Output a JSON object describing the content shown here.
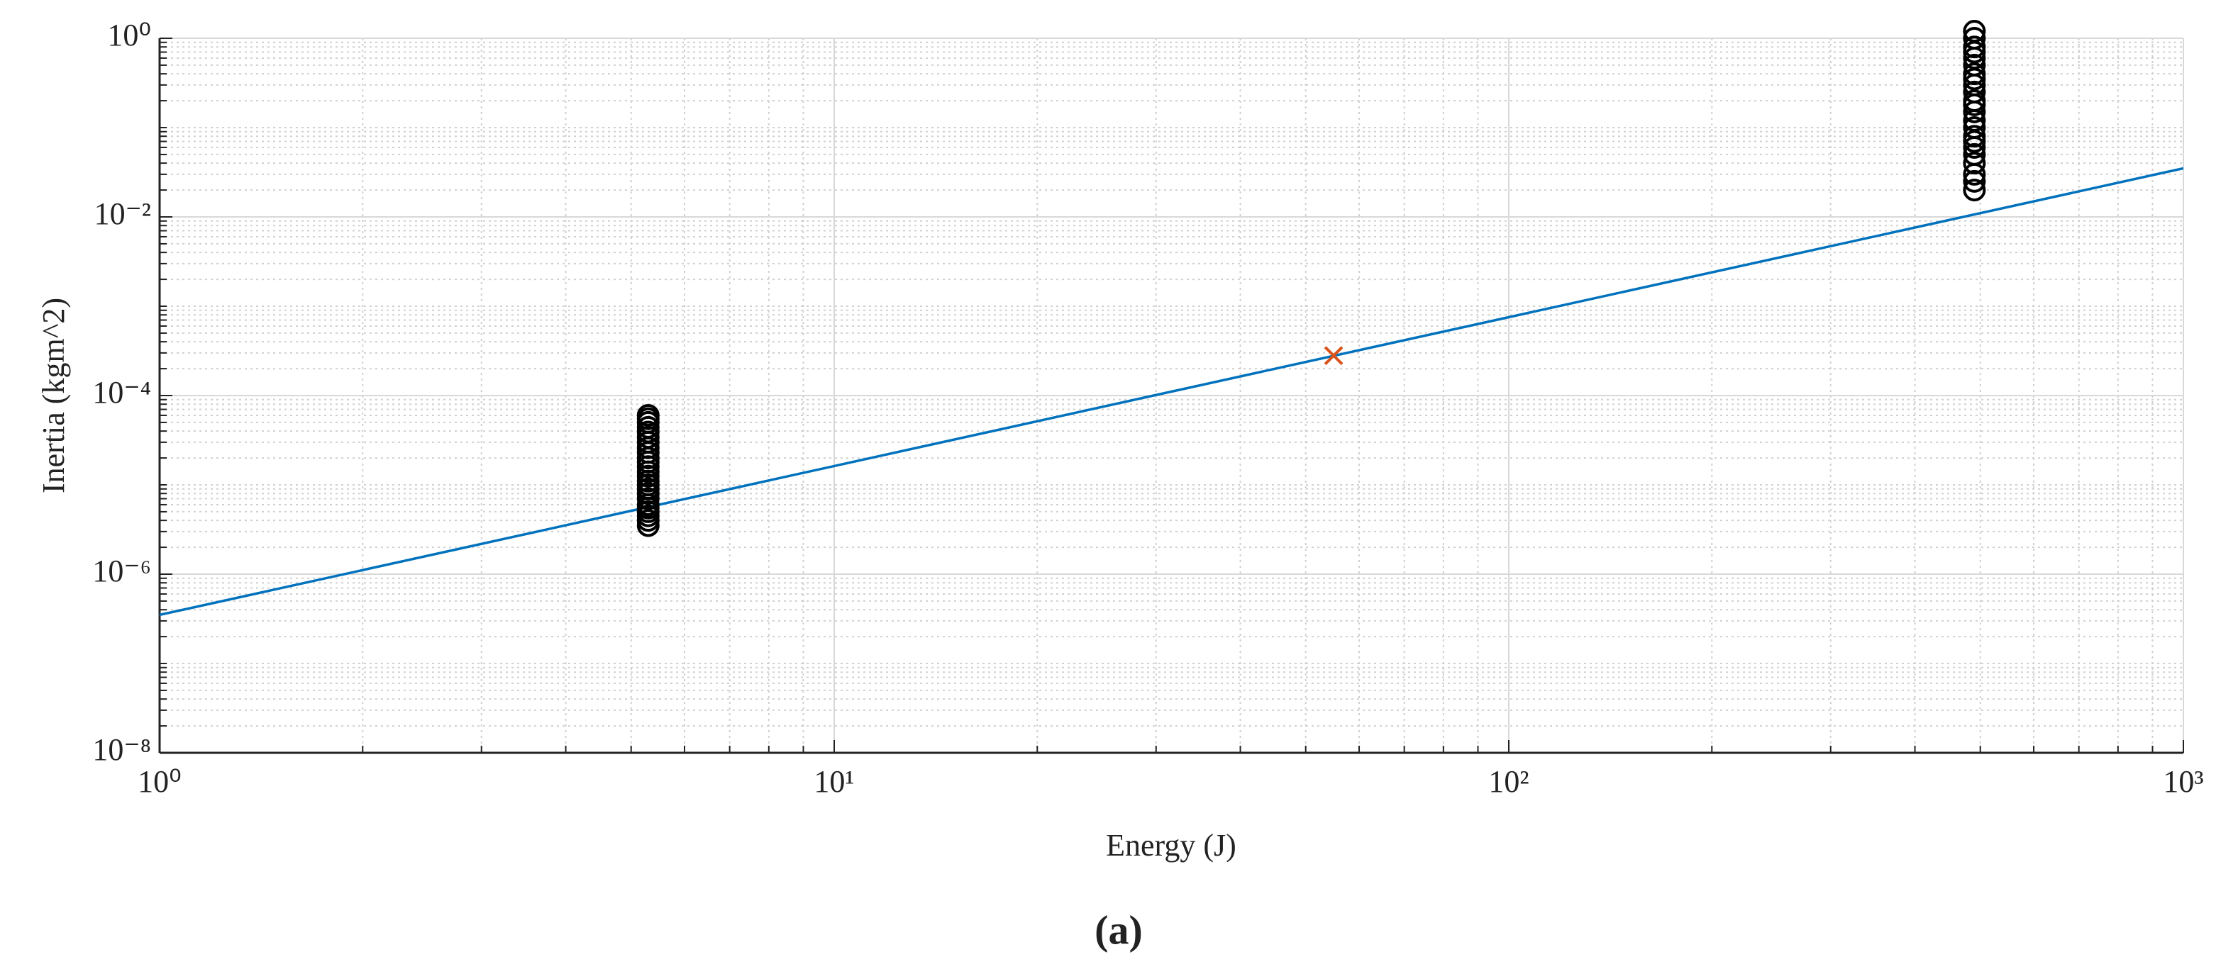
{
  "chart_data": {
    "type": "scatter",
    "xlabel": "Energy (J)",
    "ylabel": "Inertia (kgm^2)",
    "caption": "(a)",
    "xscale": "log",
    "yscale": "log",
    "grid": true,
    "minor_grid": true,
    "xlim": [
      1,
      1000
    ],
    "ylim": [
      1e-08,
      1
    ],
    "xticks": [
      {
        "value": 1,
        "label": "10⁰"
      },
      {
        "value": 10,
        "label": "10¹"
      },
      {
        "value": 100,
        "label": "10²"
      },
      {
        "value": 1000,
        "label": "10³"
      }
    ],
    "yticks": [
      {
        "value": 1e-08,
        "label": "10⁻⁸"
      },
      {
        "value": 1e-06,
        "label": "10⁻⁶"
      },
      {
        "value": 0.0001,
        "label": "10⁻⁴"
      },
      {
        "value": 0.01,
        "label": "10⁻²"
      },
      {
        "value": 1,
        "label": "10⁰"
      }
    ],
    "series": [
      {
        "mode": "markers",
        "marker": "o",
        "color": "#000000",
        "x": [
          5.3,
          5.3,
          5.3,
          5.3,
          5.3,
          5.3,
          5.3,
          5.3,
          5.3,
          5.3,
          5.3,
          5.3,
          5.3,
          5.3,
          5.3,
          5.3,
          5.3,
          5.3,
          5.3,
          5.3,
          5.3,
          5.3,
          5.3,
          5.3,
          5.3
        ],
        "y": [
          3.5e-06,
          4e-06,
          4.5e-06,
          5e-06,
          5.5e-06,
          6e-06,
          7e-06,
          8e-06,
          9e-06,
          1e-05,
          1.1e-05,
          1.25e-05,
          1.4e-05,
          1.6e-05,
          1.8e-05,
          2e-05,
          2.3e-05,
          2.6e-05,
          3e-05,
          3.4e-05,
          3.9e-05,
          4.4e-05,
          5e-05,
          5.5e-05,
          6e-05
        ]
      },
      {
        "mode": "markers",
        "marker": "o",
        "color": "#000000",
        "x": [
          490,
          490,
          490,
          490,
          490,
          490,
          490,
          490,
          490,
          490,
          490,
          490,
          490,
          490,
          490,
          490,
          490,
          490,
          490,
          490,
          490,
          490,
          490
        ],
        "y": [
          0.02,
          0.025,
          0.03,
          0.04,
          0.05,
          0.06,
          0.07,
          0.08,
          0.1,
          0.12,
          0.15,
          0.18,
          0.2,
          0.25,
          0.3,
          0.35,
          0.4,
          0.5,
          0.6,
          0.7,
          0.8,
          1.0,
          1.2
        ]
      },
      {
        "mode": "line",
        "color": "#0072bd",
        "x": [
          1,
          1000
        ],
        "y": [
          3.5e-07,
          0.035
        ]
      },
      {
        "mode": "markers",
        "marker": "x",
        "color": "#d95319",
        "x": [
          55
        ],
        "y": [
          0.00028
        ]
      }
    ]
  }
}
